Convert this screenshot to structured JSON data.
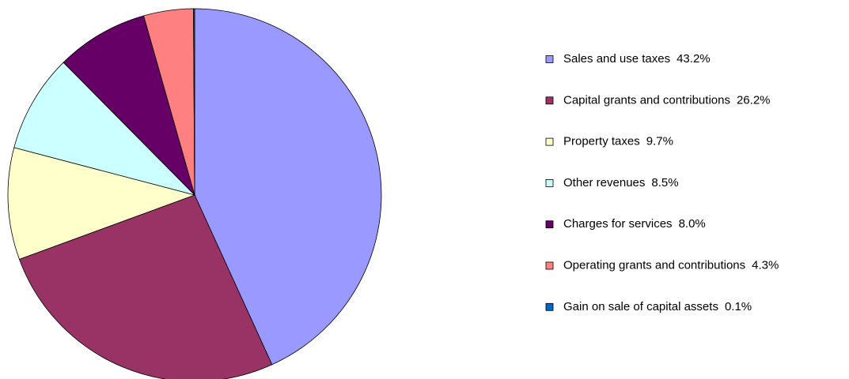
{
  "chart_data": {
    "type": "pie",
    "categories": [
      "Sales and use taxes",
      "Capital grants and contributions",
      "Property taxes",
      "Other revenues",
      "Charges for services",
      "Operating grants and contributions",
      "Gain on sale of capital assets"
    ],
    "values": [
      43.2,
      26.2,
      9.7,
      8.5,
      8.0,
      4.3,
      0.1
    ],
    "value_labels": [
      "43.2%",
      "26.2%",
      "9.7%",
      "8.5%",
      "8.0%",
      "4.3%",
      "0.1%"
    ],
    "colors": [
      "#9999ff",
      "#993366",
      "#ffffcc",
      "#ccffff",
      "#660066",
      "#ff8080",
      "#0066cc"
    ],
    "legend": "right"
  }
}
